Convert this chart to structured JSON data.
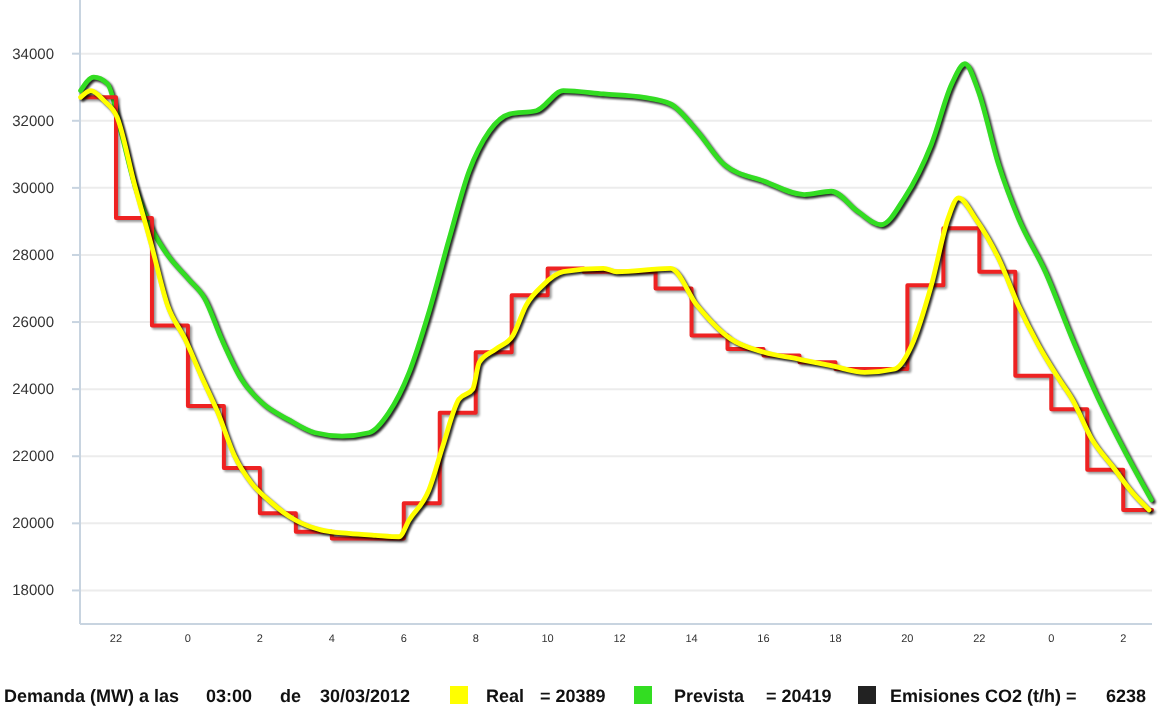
{
  "chart_data": {
    "type": "line",
    "xlim": [
      "2012-03-29T21:00",
      "2012-03-31T02:48"
    ],
    "ylim": [
      17000,
      35600
    ],
    "xticks": [
      {
        "value": "2012-03-29T22:00",
        "label": "22"
      },
      {
        "value": "2012-03-30T00:00",
        "label": "0"
      },
      {
        "value": "2012-03-30T02:00",
        "label": "2"
      },
      {
        "value": "2012-03-30T04:00",
        "label": "4"
      },
      {
        "value": "2012-03-30T06:00",
        "label": "6"
      },
      {
        "value": "2012-03-30T08:00",
        "label": "8"
      },
      {
        "value": "2012-03-30T10:00",
        "label": "10"
      },
      {
        "value": "2012-03-30T12:00",
        "label": "12"
      },
      {
        "value": "2012-03-30T14:00",
        "label": "14"
      },
      {
        "value": "2012-03-30T16:00",
        "label": "16"
      },
      {
        "value": "2012-03-30T18:00",
        "label": "18"
      },
      {
        "value": "2012-03-30T20:00",
        "label": "20"
      },
      {
        "value": "2012-03-30T22:00",
        "label": "22"
      },
      {
        "value": "2012-03-31T00:00",
        "label": "0"
      },
      {
        "value": "2012-03-31T02:00",
        "label": "2"
      }
    ],
    "yticks": [
      18000,
      20000,
      22000,
      24000,
      26000,
      28000,
      30000,
      32000,
      34000
    ],
    "grid": "y",
    "legend": "bottom",
    "annotations": [
      "Demanda (MW) a las",
      "03:00",
      "de",
      "30/03/2012",
      "= 20389",
      "= 20419",
      "Emisiones CO2 (t/h) =",
      "6238"
    ],
    "series": [
      {
        "name": "Real",
        "color": "#ffff00",
        "x": [
          "2012-03-29T21:01",
          "2012-03-29T21:18",
          "2012-03-29T21:40",
          "2012-03-29T22:02",
          "2012-03-29T22:31",
          "2012-03-29T22:59",
          "2012-03-29T23:26",
          "2012-03-29T23:55",
          "2012-03-30T00:22",
          "2012-03-30T00:50",
          "2012-03-30T01:18",
          "2012-03-30T01:46",
          "2012-03-30T02:14",
          "2012-03-30T02:59",
          "2012-03-30T03:43",
          "2012-03-30T04:28",
          "2012-03-30T05:13",
          "2012-03-30T05:52",
          "2012-03-30T06:09",
          "2012-03-30T06:42",
          "2012-03-30T07:05",
          "2012-03-30T07:32",
          "2012-03-30T07:55",
          "2012-03-30T08:06",
          "2012-03-30T08:34",
          "2012-03-30T09:02",
          "2012-03-30T09:24",
          "2012-03-30T09:52",
          "2012-03-30T10:26",
          "2012-03-30T11:33",
          "2012-03-30T11:55",
          "2012-03-30T13:25",
          "2012-03-30T14:09",
          "2012-03-30T15:05",
          "2012-03-30T16:01",
          "2012-03-30T16:57",
          "2012-03-30T17:53",
          "2012-03-30T18:49",
          "2012-03-30T19:39",
          "2012-03-30T20:07",
          "2012-03-30T20:40",
          "2012-03-30T21:08",
          "2012-03-30T21:25",
          "2012-03-30T21:53",
          "2012-03-30T22:32",
          "2012-03-30T23:05",
          "2012-03-30T23:39",
          "2012-03-31T00:13",
          "2012-03-31T00:35",
          "2012-03-31T01:08",
          "2012-03-31T01:42",
          "2012-03-31T02:16",
          "2012-03-31T02:43"
        ],
        "values": [
          32700,
          32900,
          32600,
          32100,
          30100,
          28300,
          26500,
          25500,
          24400,
          23300,
          22000,
          21200,
          20700,
          20100,
          19800,
          19700,
          19640,
          19600,
          20100,
          21000,
          22300,
          23700,
          24000,
          24800,
          25200,
          25600,
          26500,
          27100,
          27500,
          27600,
          27500,
          27600,
          26500,
          25500,
          25100,
          24900,
          24700,
          24500,
          24600,
          25300,
          27100,
          29100,
          29700,
          29100,
          27900,
          26500,
          25300,
          24300,
          23700,
          22500,
          21700,
          20900,
          20400
        ]
      },
      {
        "type": "step",
        "color": "#ee2222",
        "x": [
          "2012-03-29T21:03",
          "2012-03-29T22:00",
          "2012-03-29T23:00",
          "2012-03-30T00:00",
          "2012-03-30T01:00",
          "2012-03-30T02:00",
          "2012-03-30T03:00",
          "2012-03-30T04:00",
          "2012-03-30T05:00",
          "2012-03-30T06:00",
          "2012-03-30T07:00",
          "2012-03-30T08:00",
          "2012-03-30T09:00",
          "2012-03-30T10:00",
          "2012-03-30T11:00",
          "2012-03-30T12:00",
          "2012-03-30T13:00",
          "2012-03-30T14:00",
          "2012-03-30T15:00",
          "2012-03-30T16:00",
          "2012-03-30T17:00",
          "2012-03-30T18:00",
          "2012-03-30T19:00",
          "2012-03-30T20:00",
          "2012-03-30T21:00",
          "2012-03-30T22:00",
          "2012-03-30T23:00",
          "2012-03-31T00:00",
          "2012-03-31T01:00",
          "2012-03-31T02:00",
          "2012-03-31T02:48"
        ],
        "values": [
          32700,
          29100,
          25900,
          23500,
          21650,
          20300,
          19750,
          19550,
          19550,
          20600,
          23300,
          25100,
          26800,
          27600,
          27500,
          27500,
          27000,
          25600,
          25200,
          25000,
          24800,
          24600,
          24600,
          27100,
          28800,
          27500,
          24400,
          23400,
          21600,
          20400,
          20400
        ]
      },
      {
        "name": "Prevista",
        "color": "#33dd22",
        "x": [
          "2012-03-29T21:01",
          "2012-03-29T21:23",
          "2012-03-29T21:46",
          "2012-03-29T22:08",
          "2012-03-29T22:31",
          "2012-03-29T22:59",
          "2012-03-29T23:26",
          "2012-03-30T00:00",
          "2012-03-30T00:28",
          "2012-03-30T00:56",
          "2012-03-30T01:29",
          "2012-03-30T02:03",
          "2012-03-30T02:47",
          "2012-03-30T03:32",
          "2012-03-30T04:17",
          "2012-03-30T05:02",
          "2012-03-30T05:35",
          "2012-03-30T06:09",
          "2012-03-30T06:42",
          "2012-03-30T07:16",
          "2012-03-30T07:49",
          "2012-03-30T08:23",
          "2012-03-30T08:56",
          "2012-03-30T09:41",
          "2012-03-30T10:26",
          "2012-03-30T11:33",
          "2012-03-30T12:40",
          "2012-03-30T13:25",
          "2012-03-30T14:09",
          "2012-03-30T14:54",
          "2012-03-30T16:01",
          "2012-03-30T17:08",
          "2012-03-30T17:53",
          "2012-03-30T18:37",
          "2012-03-30T19:16",
          "2012-03-30T19:55",
          "2012-03-30T20:40",
          "2012-03-30T21:14",
          "2012-03-30T21:36",
          "2012-03-30T21:58",
          "2012-03-30T22:32",
          "2012-03-30T23:05",
          "2012-03-30T23:50",
          "2012-03-31T00:35",
          "2012-03-31T01:19",
          "2012-03-31T02:04",
          "2012-03-31T02:47"
        ],
        "values": [
          32900,
          33300,
          33100,
          31700,
          30100,
          28800,
          28000,
          27300,
          26700,
          25500,
          24300,
          23600,
          23100,
          22700,
          22600,
          22700,
          23300,
          24500,
          26300,
          28500,
          30500,
          31700,
          32200,
          32300,
          32900,
          32800,
          32700,
          32500,
          31700,
          30700,
          30200,
          29800,
          29900,
          29300,
          28900,
          29700,
          31300,
          33100,
          33700,
          32900,
          30700,
          29100,
          27500,
          25500,
          23700,
          22100,
          20700
        ]
      }
    ]
  }
}
